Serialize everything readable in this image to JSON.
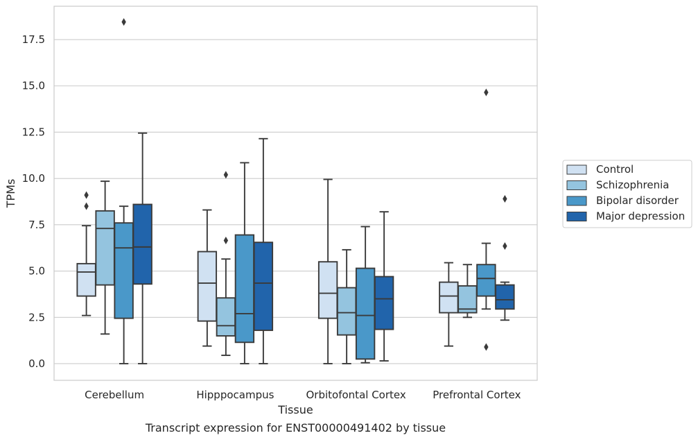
{
  "chart_data": {
    "type": "box",
    "caption": "Transcript expression for ENST00000491402 by tissue",
    "xlabel": "Tissue",
    "ylabel": "TPMs",
    "ylim": [
      -0.9,
      19.3
    ],
    "yticks": [
      0.0,
      2.5,
      5.0,
      7.5,
      10.0,
      12.5,
      15.0,
      17.5
    ],
    "ytick_labels": [
      "0.0",
      "2.5",
      "5.0",
      "7.5",
      "10.0",
      "12.5",
      "15.0",
      "17.5"
    ],
    "grid": true,
    "legend_position": "right",
    "categories": [
      "Cerebellum",
      "Hipppocampus",
      "Orbitofontal Cortex",
      "Prefrontal Cortex"
    ],
    "series": [
      {
        "name": "Control",
        "color": "#d0e1f2",
        "boxes": [
          {
            "whislo": 2.6,
            "q1": 3.65,
            "med": 4.95,
            "q3": 5.4,
            "whishi": 7.45,
            "fliers": [
              8.5,
              9.1
            ]
          },
          {
            "whislo": 0.95,
            "q1": 2.3,
            "med": 4.35,
            "q3": 6.05,
            "whishi": 8.3,
            "fliers": []
          },
          {
            "whislo": 0.0,
            "q1": 2.45,
            "med": 3.8,
            "q3": 5.5,
            "whishi": 9.95,
            "fliers": []
          },
          {
            "whislo": 0.95,
            "q1": 2.75,
            "med": 3.65,
            "q3": 4.4,
            "whishi": 5.45,
            "fliers": []
          }
        ]
      },
      {
        "name": "Schizophrenia",
        "color": "#94c4df",
        "boxes": [
          {
            "whislo": 1.6,
            "q1": 4.25,
            "med": 7.3,
            "q3": 8.25,
            "whishi": 9.85,
            "fliers": []
          },
          {
            "whislo": 0.45,
            "q1": 1.5,
            "med": 2.05,
            "q3": 3.55,
            "whishi": 5.65,
            "fliers": [
              6.65,
              10.2
            ]
          },
          {
            "whislo": 0.0,
            "q1": 1.55,
            "med": 2.75,
            "q3": 4.1,
            "whishi": 6.15,
            "fliers": []
          },
          {
            "whislo": 2.5,
            "q1": 2.75,
            "med": 2.95,
            "q3": 4.2,
            "whishi": 5.35,
            "fliers": []
          }
        ]
      },
      {
        "name": "Bipolar disorder",
        "color": "#4a98c9",
        "boxes": [
          {
            "whislo": 0.0,
            "q1": 2.45,
            "med": 6.25,
            "q3": 7.6,
            "whishi": 8.5,
            "fliers": [
              18.45
            ]
          },
          {
            "whislo": 0.0,
            "q1": 1.15,
            "med": 2.7,
            "q3": 6.95,
            "whishi": 10.85,
            "fliers": []
          },
          {
            "whislo": 0.05,
            "q1": 0.25,
            "med": 2.6,
            "q3": 5.15,
            "whishi": 7.4,
            "fliers": []
          },
          {
            "whislo": 2.95,
            "q1": 3.65,
            "med": 4.6,
            "q3": 5.35,
            "whishi": 6.5,
            "fliers": [
              0.9,
              14.65
            ]
          }
        ]
      },
      {
        "name": "Major depression",
        "color": "#2164ab",
        "boxes": [
          {
            "whislo": 0.0,
            "q1": 4.3,
            "med": 6.3,
            "q3": 8.6,
            "whishi": 12.45,
            "fliers": []
          },
          {
            "whislo": 0.0,
            "q1": 1.8,
            "med": 4.35,
            "q3": 6.55,
            "whishi": 12.15,
            "fliers": []
          },
          {
            "whislo": 0.15,
            "q1": 1.85,
            "med": 3.5,
            "q3": 4.7,
            "whishi": 8.2,
            "fliers": []
          },
          {
            "whislo": 2.35,
            "q1": 2.95,
            "med": 3.45,
            "q3": 4.25,
            "whishi": 4.4,
            "fliers": [
              6.35,
              8.9
            ]
          }
        ]
      }
    ]
  }
}
